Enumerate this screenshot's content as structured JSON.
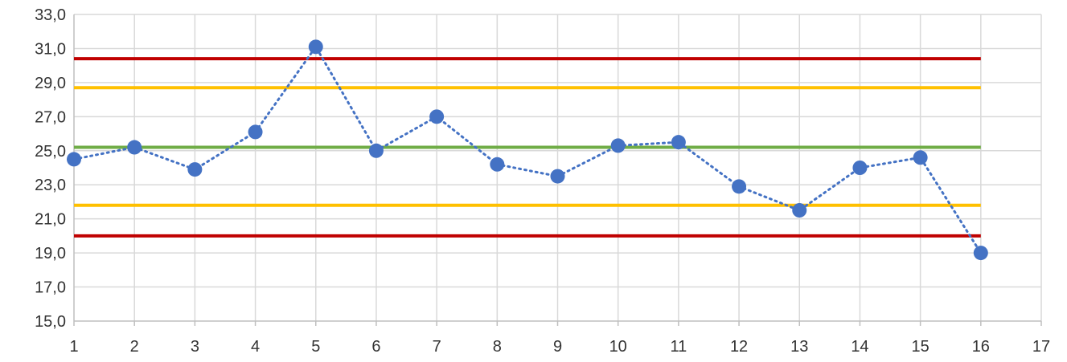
{
  "chart_data": {
    "type": "line",
    "title": "",
    "xlabel": "",
    "ylabel": "",
    "xlim": [
      1,
      17
    ],
    "ylim": [
      15,
      33
    ],
    "grid": true,
    "x_ticks": [
      {
        "value": 1,
        "label": "1"
      },
      {
        "value": 2,
        "label": "2"
      },
      {
        "value": 3,
        "label": "3"
      },
      {
        "value": 4,
        "label": "4"
      },
      {
        "value": 5,
        "label": "5"
      },
      {
        "value": 6,
        "label": "6"
      },
      {
        "value": 7,
        "label": "7"
      },
      {
        "value": 8,
        "label": "8"
      },
      {
        "value": 9,
        "label": "9"
      },
      {
        "value": 10,
        "label": "10"
      },
      {
        "value": 11,
        "label": "11"
      },
      {
        "value": 12,
        "label": "12"
      },
      {
        "value": 13,
        "label": "13"
      },
      {
        "value": 14,
        "label": "14"
      },
      {
        "value": 15,
        "label": "15"
      },
      {
        "value": 16,
        "label": "16"
      },
      {
        "value": 17,
        "label": "17"
      }
    ],
    "y_ticks": [
      {
        "value": 15,
        "label": "15,0"
      },
      {
        "value": 17,
        "label": "17,0"
      },
      {
        "value": 19,
        "label": "19,0"
      },
      {
        "value": 21,
        "label": "21,0"
      },
      {
        "value": 23,
        "label": "23,0"
      },
      {
        "value": 25,
        "label": "25,0"
      },
      {
        "value": 27,
        "label": "27,0"
      },
      {
        "value": 29,
        "label": "29,0"
      },
      {
        "value": 31,
        "label": "31,0"
      },
      {
        "value": 33,
        "label": "33,0"
      }
    ],
    "series": [
      {
        "style": "dotted-markers",
        "color": "#4472c4",
        "x": [
          1,
          2,
          3,
          4,
          5,
          6,
          7,
          8,
          9,
          10,
          11,
          12,
          13,
          14,
          15,
          16
        ],
        "y": [
          24.5,
          25.2,
          23.9,
          26.1,
          31.1,
          25.0,
          27.0,
          24.2,
          23.5,
          25.3,
          25.5,
          22.9,
          21.5,
          24.0,
          24.6,
          19.0
        ]
      }
    ],
    "reference_lines": [
      {
        "value": 30.4,
        "color": "#c00000",
        "x_range": [
          1,
          16
        ]
      },
      {
        "value": 28.7,
        "color": "#ffc000",
        "x_range": [
          1,
          16
        ]
      },
      {
        "value": 25.2,
        "color": "#70ad47",
        "x_range": [
          1,
          16
        ]
      },
      {
        "value": 21.8,
        "color": "#ffc000",
        "x_range": [
          1,
          16
        ]
      },
      {
        "value": 20.0,
        "color": "#c00000",
        "x_range": [
          1,
          16
        ]
      }
    ]
  }
}
